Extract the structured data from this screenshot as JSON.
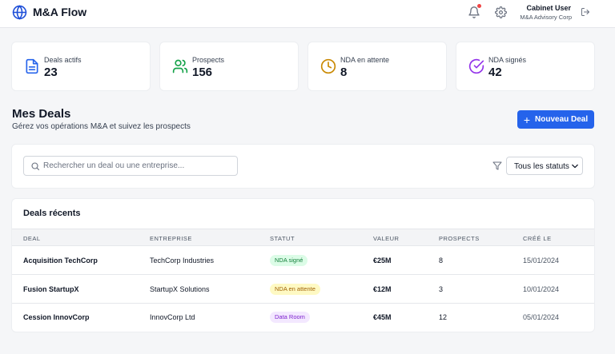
{
  "header": {
    "app_title": "M&A Flow",
    "user_name": "Cabinet User",
    "user_org": "M&A Advisory Corp",
    "icons": [
      "globe-icon",
      "bell-icon",
      "gear-icon",
      "logout-icon"
    ],
    "notification_color": "#ef4444"
  },
  "stats": [
    {
      "label": "Deals actifs",
      "value": "23",
      "icon": "document-icon",
      "color": "#2563eb"
    },
    {
      "label": "Prospects",
      "value": "156",
      "icon": "users-icon",
      "color": "#16a34a"
    },
    {
      "label": "NDA en attente",
      "value": "8",
      "icon": "clock-icon",
      "color": "#ca8a04"
    },
    {
      "label": "NDA signés",
      "value": "42",
      "icon": "check-circle-icon",
      "color": "#9333ea"
    }
  ],
  "page": {
    "title": "Mes Deals",
    "subtitle": "Gérez vos opérations M&A et suivez les prospects",
    "new_button": "Nouveau Deal",
    "accent": "#2563eb"
  },
  "filters": {
    "search_placeholder": "Rechercher un deal ou une entreprise...",
    "status_selected": "Tous les statuts"
  },
  "table": {
    "title": "Deals récents",
    "columns": [
      "DEAL",
      "ENTREPRISE",
      "STATUT",
      "VALEUR",
      "PROSPECTS",
      "CRÉÉ LE"
    ],
    "rows": [
      {
        "deal": "Acquisition TechCorp",
        "company": "TechCorp Industries",
        "status": "NDA signé",
        "value": "€25M",
        "prospects": "8",
        "created": "15/01/2024"
      },
      {
        "deal": "Fusion StartupX",
        "company": "StartupX Solutions",
        "status": "NDA en attente",
        "value": "€12M",
        "prospects": "3",
        "created": "10/01/2024"
      },
      {
        "deal": "Cession InnovCorp",
        "company": "InnovCorp Ltd",
        "status": "Data Room",
        "value": "€45M",
        "prospects": "12",
        "created": "05/01/2024"
      }
    ],
    "status_colors": {
      "NDA signé": {
        "bg": "#dcfce7",
        "fg": "#15803d"
      },
      "NDA en attente": {
        "bg": "#fef9c3",
        "fg": "#a16207"
      },
      "Data Room": {
        "bg": "#f3e8ff",
        "fg": "#7e22ce"
      }
    }
  }
}
